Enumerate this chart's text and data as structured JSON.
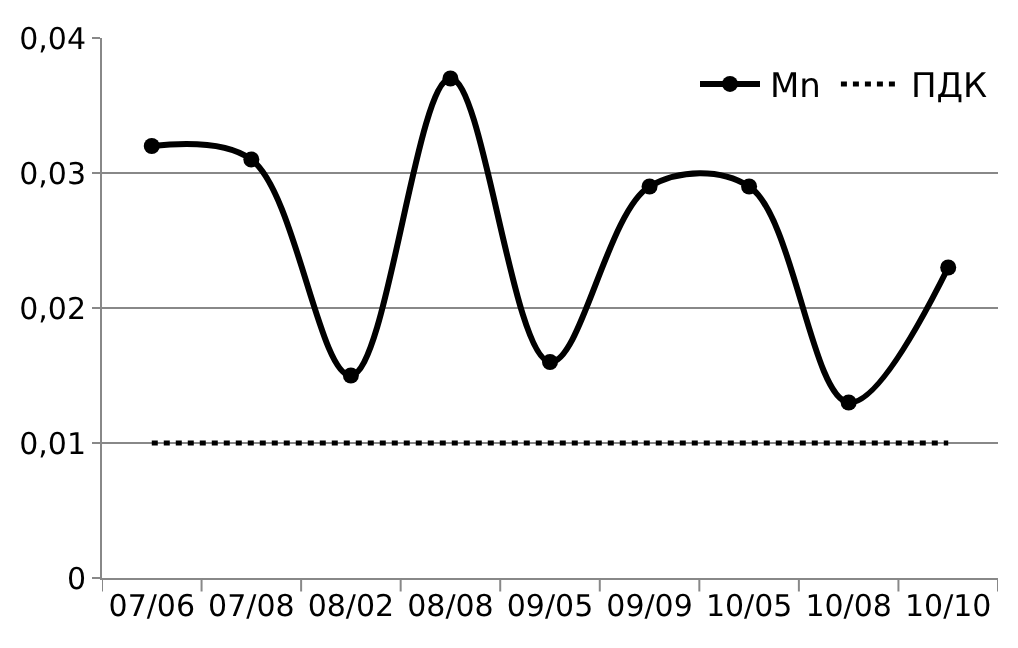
{
  "chart_data": {
    "type": "line",
    "categories": [
      "07/06",
      "07/08",
      "08/02",
      "08/08",
      "09/05",
      "09/09",
      "10/05",
      "10/08",
      "10/10"
    ],
    "series": [
      {
        "name": "Mn",
        "color": "#000000",
        "marker": "circle",
        "line_style": "solid",
        "values": [
          0.032,
          0.031,
          0.015,
          0.037,
          0.016,
          0.029,
          0.029,
          0.013,
          0.023
        ]
      },
      {
        "name": "ПДК",
        "color": "#000000",
        "marker": "none",
        "line_style": "dotted",
        "values": [
          0.01,
          0.01,
          0.01,
          0.01,
          0.01,
          0.01,
          0.01,
          0.01,
          0.01
        ]
      }
    ],
    "ylim": [
      0,
      0.04
    ],
    "yticks": [
      {
        "value": 0,
        "label": "0"
      },
      {
        "value": 0.01,
        "label": "0,01"
      },
      {
        "value": 0.02,
        "label": "0,02"
      },
      {
        "value": 0.03,
        "label": "0,03"
      },
      {
        "value": 0.04,
        "label": "0,04"
      }
    ],
    "grid": "y",
    "legend": "top right"
  }
}
